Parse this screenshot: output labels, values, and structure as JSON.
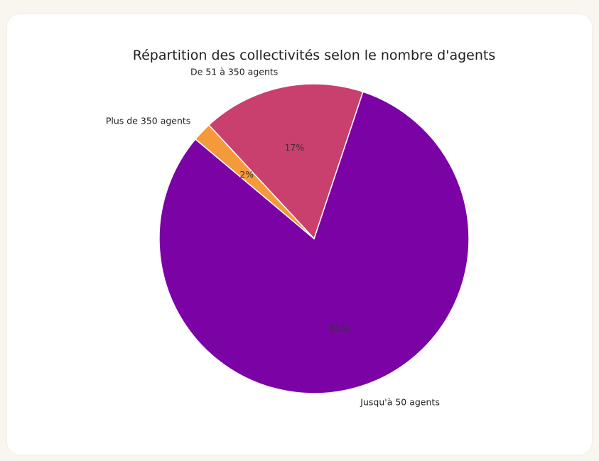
{
  "chart_data": {
    "type": "pie",
    "title": "Répartition des collectivités selon le nombre d'agents",
    "categories": [
      "Jusqu'à 50 agents",
      "De 51 à 350 agents",
      "Plus de 350 agents"
    ],
    "values": [
      81,
      17,
      2
    ],
    "percent_labels": [
      "81%",
      "17%",
      "2%"
    ],
    "colors": [
      "#7b03a6",
      "#c9406f",
      "#f59a3b"
    ],
    "start_angle_deg": 140,
    "direction": "counterclockwise",
    "legend": "none"
  }
}
